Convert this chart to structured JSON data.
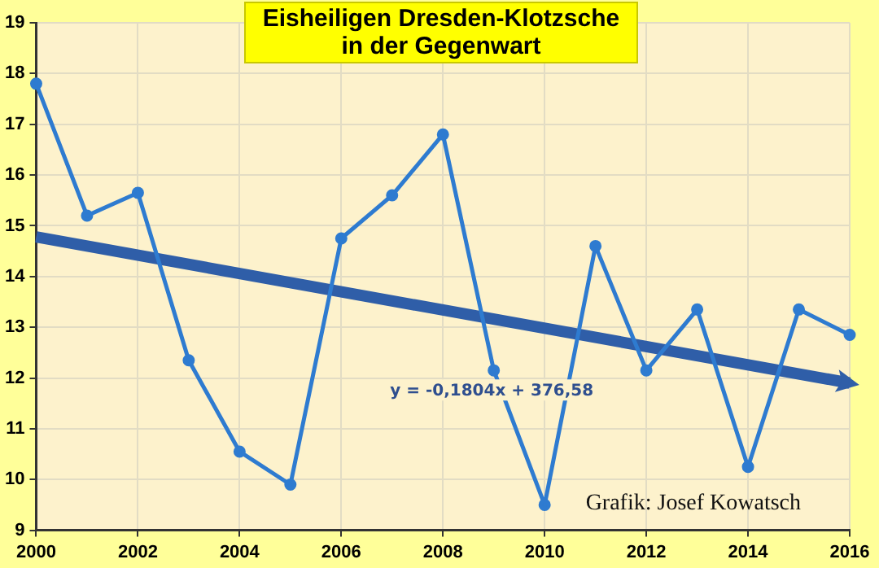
{
  "chart_data": {
    "type": "line",
    "title": "Eisheiligen Dresden-Klotzsche\nin der Gegenwart",
    "x": [
      2000,
      2001,
      2002,
      2003,
      2004,
      2005,
      2006,
      2007,
      2008,
      2009,
      2010,
      2011,
      2012,
      2013,
      2014,
      2015,
      2016
    ],
    "series": [
      {
        "color": "#2e7bd0",
        "marker": "circle",
        "values": [
          17.8,
          15.2,
          15.65,
          12.35,
          10.55,
          9.9,
          14.75,
          15.6,
          16.8,
          12.15,
          9.5,
          14.6,
          12.15,
          13.35,
          10.25,
          13.35,
          12.85
        ]
      },
      {
        "type": "line",
        "color": "#2f5ea8",
        "x": [
          2000,
          2016
        ],
        "values": [
          14.78,
          11.9
        ]
      }
    ],
    "xlim": [
      2000,
      2016
    ],
    "xticks": [
      2000,
      2002,
      2004,
      2006,
      2008,
      2010,
      2012,
      2014,
      2016
    ],
    "ylim": [
      9,
      19
    ],
    "yticks": [
      9,
      10,
      11,
      12,
      13,
      14,
      15,
      16,
      17,
      18,
      19
    ],
    "grid": true,
    "legend": false,
    "annotations": [
      "y = -0,1804x + 376,58",
      "Grafik: Josef Kowatsch"
    ]
  }
}
